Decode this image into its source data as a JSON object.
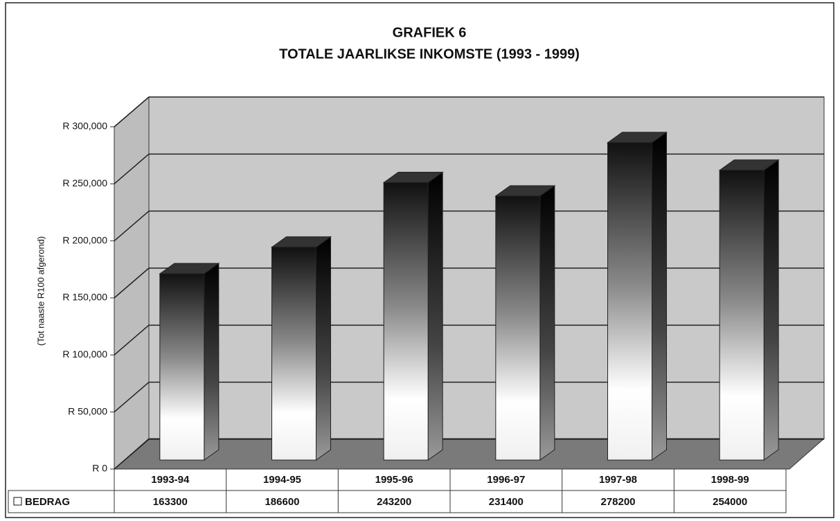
{
  "chart_data": {
    "type": "bar3d",
    "title": "GRAFIEK 6",
    "subtitle": "TOTALE JAARLIKSE INKOMSTE (1993 - 1999)",
    "y_label": "(Tot naaste R100 afgerond)",
    "categories": [
      "1993-94",
      "1994-95",
      "1995-96",
      "1996-97",
      "1997-98",
      "1998-99"
    ],
    "series": [
      {
        "name": "BEDRAG",
        "values": [
          163300,
          186600,
          243200,
          231400,
          278200,
          254000
        ]
      }
    ],
    "ylim": [
      0,
      300000
    ],
    "yticks": [
      {
        "value": 0,
        "label": "R 0"
      },
      {
        "value": 50000,
        "label": "R 50,000"
      },
      {
        "value": 100000,
        "label": "R 100,000"
      },
      {
        "value": 150000,
        "label": "R 150,000"
      },
      {
        "value": 200000,
        "label": "R 200,000"
      },
      {
        "value": 250000,
        "label": "R 250,000"
      },
      {
        "value": 300000,
        "label": "R 300,000"
      }
    ],
    "grid": true
  }
}
